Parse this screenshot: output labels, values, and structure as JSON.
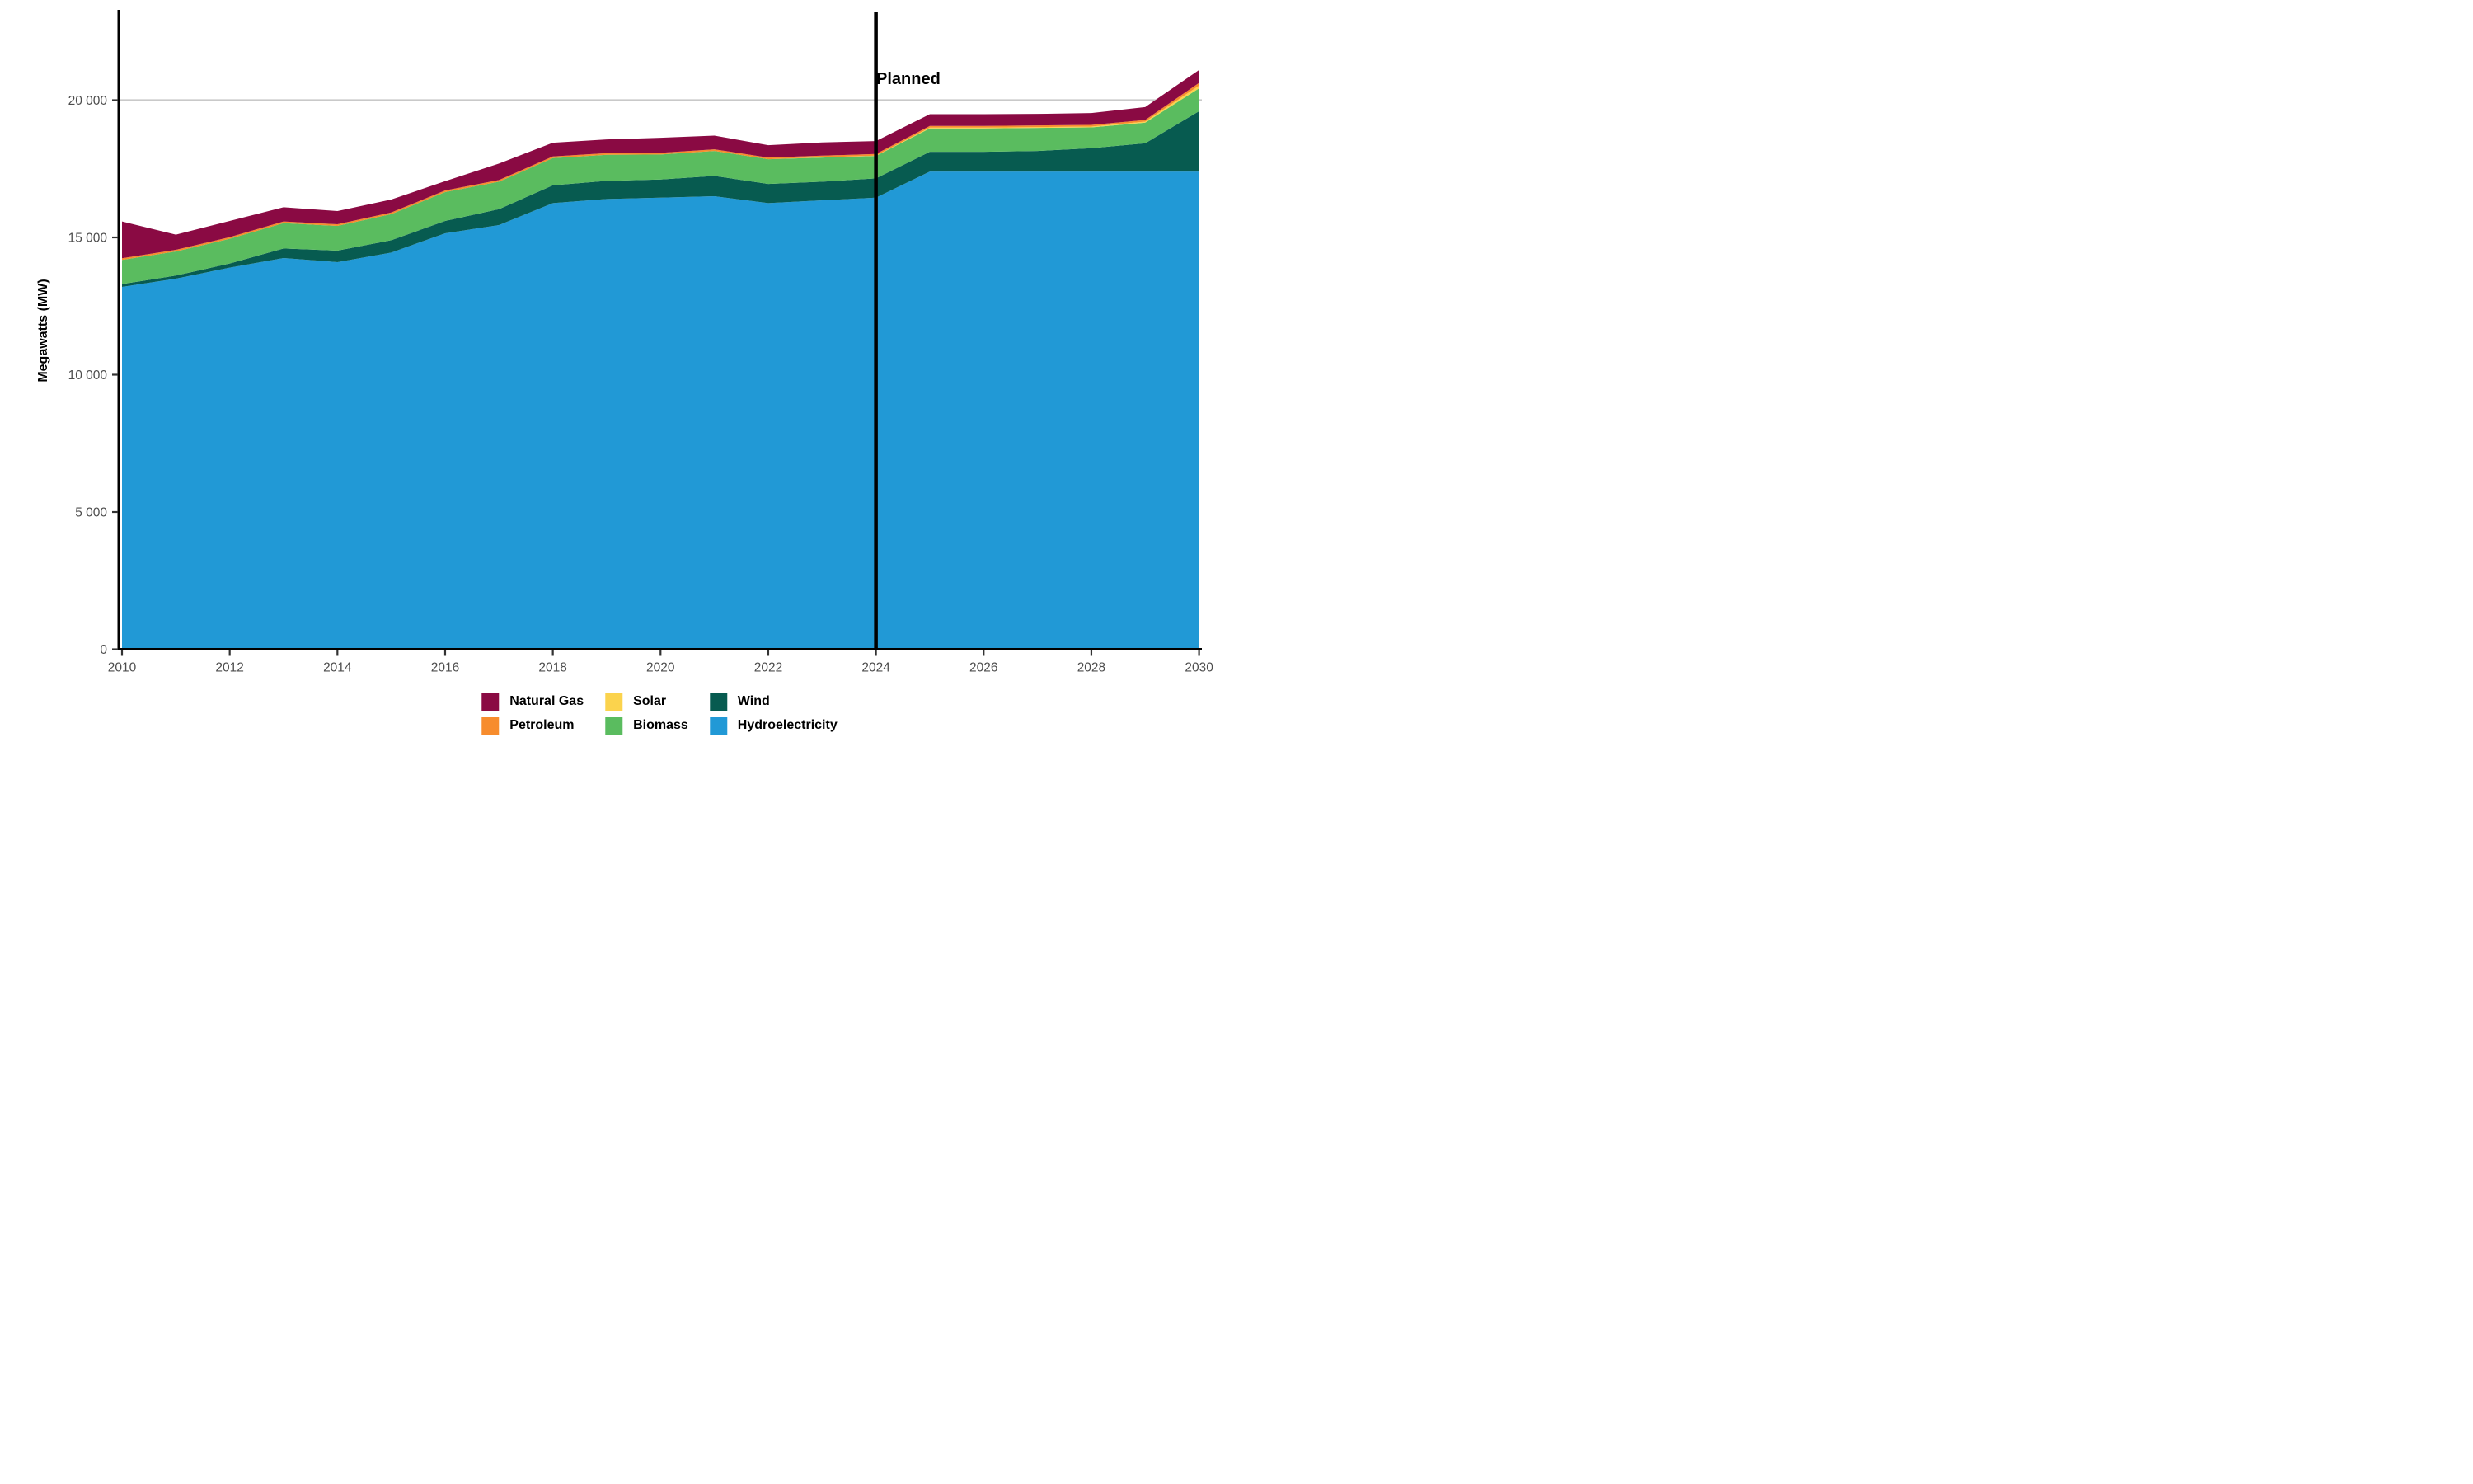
{
  "y_axis": {
    "title": "Megawatts (MW)",
    "ticks": [
      {
        "value": 0,
        "label": "0"
      },
      {
        "value": 5000,
        "label": "5 000"
      },
      {
        "value": 10000,
        "label": "10 000"
      },
      {
        "value": 15000,
        "label": "15 000"
      },
      {
        "value": 20000,
        "label": "20 000"
      }
    ]
  },
  "x_axis": {
    "ticks": [
      2010,
      2012,
      2014,
      2016,
      2018,
      2020,
      2022,
      2024,
      2026,
      2028,
      2030
    ]
  },
  "annotation": {
    "label": "Planned",
    "year": 2024
  },
  "colors": {
    "axis_line": "#000000",
    "tick_text": "#4d4d4d",
    "gridline": "#c9c9c9",
    "planned_line": "#000000"
  },
  "legend": [
    {
      "label": "Natural Gas",
      "color": "#8a0a43"
    },
    {
      "label": "Petroleum",
      "color": "#f78c2d"
    },
    {
      "label": "Solar",
      "color": "#fbd34d"
    },
    {
      "label": "Biomass",
      "color": "#5abc5f"
    },
    {
      "label": "Wind",
      "color": "#075b50"
    },
    {
      "label": "Hydroelectricity",
      "color": "#2199d6"
    }
  ],
  "chart_data": {
    "type": "area",
    "stacked": true,
    "title": "",
    "xlabel": "",
    "ylabel": "Megawatts (MW)",
    "ylim": [
      0,
      23300
    ],
    "xlim": [
      2010,
      2030
    ],
    "gridlines": [
      20000
    ],
    "planned_divider_x": 2024,
    "legend_position": "bottom-center",
    "x": [
      2010,
      2011,
      2012,
      2013,
      2014,
      2015,
      2016,
      2017,
      2018,
      2019,
      2020,
      2021,
      2022,
      2023,
      2024,
      2025,
      2026,
      2027,
      2028,
      2029,
      2030
    ],
    "series": [
      {
        "name": "Hydroelectricity",
        "color": "#2199d6",
        "values": [
          13200,
          13500,
          13900,
          14250,
          14100,
          14450,
          15150,
          15450,
          16250,
          16400,
          16450,
          16500,
          16250,
          16350,
          16450,
          17400,
          17400,
          17400,
          17400,
          17400,
          17400
        ]
      },
      {
        "name": "Wind",
        "color": "#075b50",
        "values": [
          100,
          110,
          150,
          350,
          420,
          450,
          450,
          580,
          650,
          660,
          660,
          740,
          700,
          680,
          700,
          720,
          720,
          750,
          850,
          1030,
          2200
        ]
      },
      {
        "name": "Biomass",
        "color": "#5abc5f",
        "values": [
          880,
          880,
          900,
          920,
          900,
          950,
          1050,
          1000,
          990,
          950,
          910,
          910,
          900,
          880,
          820,
          850,
          850,
          840,
          760,
          750,
          830
        ]
      },
      {
        "name": "Solar",
        "color": "#fbd34d",
        "values": [
          0,
          0,
          0,
          0,
          0,
          0,
          0,
          0,
          0,
          0,
          0,
          0,
          0,
          10,
          10,
          30,
          30,
          30,
          30,
          40,
          100
        ]
      },
      {
        "name": "Petroleum",
        "color": "#f78c2d",
        "values": [
          60,
          60,
          60,
          60,
          60,
          60,
          60,
          60,
          60,
          60,
          60,
          60,
          60,
          60,
          60,
          60,
          60,
          60,
          60,
          60,
          100
        ]
      },
      {
        "name": "Natural Gas",
        "color": "#8a0a43",
        "values": [
          1340,
          550,
          590,
          520,
          480,
          470,
          340,
          600,
          500,
          500,
          550,
          500,
          450,
          480,
          470,
          430,
          430,
          420,
          430,
          470,
          470
        ]
      }
    ],
    "totals": [
      15580,
      15100,
      15600,
      16100,
      15960,
      16380,
      17050,
      17690,
      18450,
      18570,
      18630,
      18710,
      18360,
      18460,
      18510,
      19490,
      19490,
      19500,
      19530,
      19750,
      21100
    ]
  }
}
